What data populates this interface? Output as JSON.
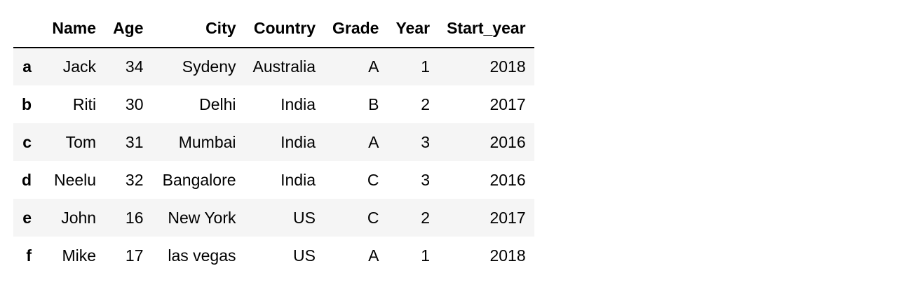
{
  "table": {
    "index_header": "",
    "columns": [
      "Name",
      "Age",
      "City",
      "Country",
      "Grade",
      "Year",
      "Start_year"
    ],
    "rows": [
      {
        "index": "a",
        "cells": [
          "Jack",
          "34",
          "Sydeny",
          "Australia",
          "A",
          "1",
          "2018"
        ]
      },
      {
        "index": "b",
        "cells": [
          "Riti",
          "30",
          "Delhi",
          "India",
          "B",
          "2",
          "2017"
        ]
      },
      {
        "index": "c",
        "cells": [
          "Tom",
          "31",
          "Mumbai",
          "India",
          "A",
          "3",
          "2016"
        ]
      },
      {
        "index": "d",
        "cells": [
          "Neelu",
          "32",
          "Bangalore",
          "India",
          "C",
          "3",
          "2016"
        ]
      },
      {
        "index": "e",
        "cells": [
          "John",
          "16",
          "New York",
          "US",
          "C",
          "2",
          "2017"
        ]
      },
      {
        "index": "f",
        "cells": [
          "Mike",
          "17",
          "las vegas",
          "US",
          "A",
          "1",
          "2018"
        ]
      }
    ]
  },
  "colors": {
    "header_rule": "#000000",
    "striped_row": "#f5f5f5",
    "background": "#ffffff"
  }
}
